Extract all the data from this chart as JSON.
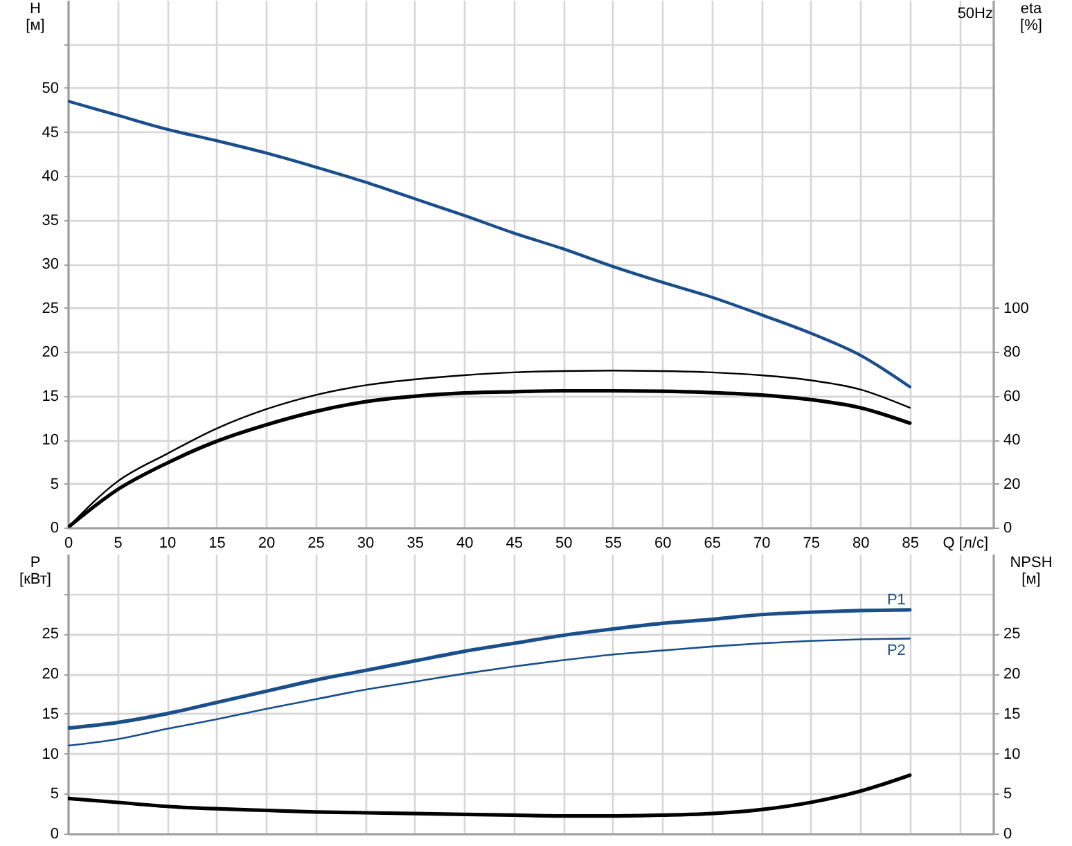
{
  "chart_data": [
    {
      "type": "line",
      "title": "50Hz",
      "xlabel": "Q [л/с]",
      "ylabel": "H [м]",
      "y2label": "eta [%]",
      "x": [
        0,
        5,
        10,
        15,
        20,
        25,
        30,
        35,
        40,
        45,
        50,
        55,
        60,
        65,
        70,
        75,
        80,
        85
      ],
      "xlim": [
        0,
        93.4
      ],
      "xticks": [
        0,
        5,
        10,
        15,
        20,
        25,
        30,
        35,
        40,
        45,
        50,
        55,
        60,
        65,
        70,
        75,
        80,
        85,
        {
          "value": 90,
          "label": null
        }
      ],
      "ylim": [
        0,
        60
      ],
      "yticks": [
        0,
        5,
        10,
        15,
        20,
        25,
        30,
        35,
        40,
        45,
        50,
        {
          "value": 55,
          "label": null
        }
      ],
      "y2lim": [
        0,
        240
      ],
      "y2ticks": [
        0,
        20,
        40,
        60,
        80,
        100
      ],
      "grid": true,
      "series": [
        {
          "color": "#1a4f8b",
          "values": [
            48.5,
            46.9,
            45.3,
            44.0,
            42.6,
            41.0,
            39.3,
            37.4,
            35.5,
            33.5,
            31.7,
            29.7,
            27.9,
            26.2,
            24.2,
            22.1,
            19.6,
            16.0
          ]
        },
        {
          "color": "#000000",
          "axis": "y2",
          "values": [
            0,
            20.9,
            33.5,
            45.0,
            53.8,
            60.3,
            64.7,
            67.4,
            69.3,
            70.6,
            71.2,
            71.4,
            71.2,
            70.6,
            69.3,
            67.0,
            62.8,
            54.5
          ]
        },
        {
          "color": "#000000",
          "axis": "y2",
          "values": [
            0,
            17.2,
            29.3,
            39.2,
            46.7,
            52.8,
            57.2,
            59.7,
            61.2,
            61.8,
            62.2,
            62.2,
            62.0,
            61.4,
            60.3,
            58.2,
            54.5,
            47.5
          ]
        }
      ]
    },
    {
      "type": "line",
      "ylabel": "P [кВт]",
      "y2label": "NPSH [м]",
      "x": [
        0,
        5,
        10,
        15,
        20,
        25,
        30,
        35,
        40,
        45,
        50,
        55,
        60,
        65,
        70,
        75,
        80,
        85
      ],
      "xlim": [
        0,
        93.4
      ],
      "xticks": [
        0,
        5,
        10,
        15,
        20,
        25,
        30,
        35,
        40,
        45,
        50,
        55,
        60,
        65,
        70,
        75,
        80,
        85,
        {
          "value": 90,
          "label": null
        }
      ],
      "ylim": [
        0,
        35
      ],
      "yticks": [
        0,
        5,
        10,
        15,
        20,
        25,
        {
          "value": 30,
          "label": null
        }
      ],
      "y2lim": [
        0,
        35
      ],
      "y2ticks": [
        0,
        5,
        10,
        15,
        20,
        25
      ],
      "tick_labels": "y",
      "grid": true,
      "series": [
        {
          "name": "P1",
          "color": "#1a4f8b",
          "values": [
            13.2,
            13.9,
            15.0,
            16.4,
            17.8,
            19.2,
            20.4,
            21.6,
            22.8,
            23.8,
            24.8,
            25.6,
            26.3,
            26.8,
            27.4,
            27.7,
            27.9,
            28.0
          ]
        },
        {
          "name": "P2",
          "color": "#1a4f8b",
          "values": [
            11.0,
            11.8,
            13.1,
            14.3,
            15.6,
            16.8,
            18.0,
            19.0,
            20.0,
            20.9,
            21.7,
            22.4,
            22.9,
            23.4,
            23.8,
            24.1,
            24.3,
            24.4
          ]
        },
        {
          "color": "#000000",
          "axis": "y2",
          "values": [
            4.4,
            3.9,
            3.4,
            3.1,
            2.9,
            2.7,
            2.6,
            2.5,
            2.4,
            2.3,
            2.2,
            2.2,
            2.3,
            2.5,
            3.0,
            3.9,
            5.3,
            7.3
          ]
        }
      ]
    }
  ]
}
